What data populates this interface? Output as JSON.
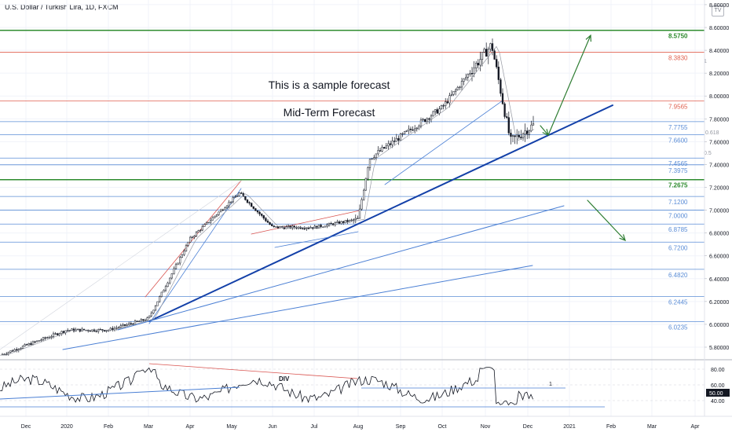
{
  "header": {
    "symbol_title": "U.S. Dollar / Turkish Lira, 1D, FXCM",
    "logo_text": "TV"
  },
  "annotations": {
    "forecast_line1": "This is a sample forecast",
    "forecast_line2": "Mid-Term Forecast",
    "div_label": "DIV",
    "fib_0618": "0.618",
    "fib_05": "0.5",
    "fib_1": "1",
    "rsi_1": "1"
  },
  "colors": {
    "candle": "#131722",
    "green_level": "#2e8b2e",
    "red_level": "#e0614f",
    "blue_level": "#5b8dd6",
    "trendline_dark": "#1340a8",
    "trendline_light": "#4a7fd4",
    "arrow": "#2e7d32",
    "resistance_red": "#d9534f"
  },
  "chart_data": {
    "type": "candlestick",
    "title": "U.S. Dollar / Turkish Lira, 1D, FXCM",
    "ylim": [
      5.7,
      8.8
    ],
    "yticks": [
      5.8,
      6.0,
      6.2,
      6.4,
      6.6,
      6.8,
      7.0,
      7.2,
      7.4,
      7.6,
      7.8,
      8.0,
      8.2,
      8.4,
      8.6,
      8.8
    ],
    "yticks_labels": [
      "5.80000",
      "6.00000",
      "6.20000",
      "6.40000",
      "6.60000",
      "6.80000",
      "7.00000",
      "7.20000",
      "7.40000",
      "7.60000",
      "7.80000",
      "8.00000",
      "8.20000",
      "8.40000",
      "8.60000",
      "8.80000"
    ],
    "xticks": [
      "Dec",
      "2020",
      "Feb",
      "Mar",
      "Apr",
      "May",
      "Jun",
      "Jul",
      "Aug",
      "Sep",
      "Oct",
      "Nov",
      "Dec",
      "2021",
      "Feb",
      "Mar",
      "Apr"
    ],
    "levels": [
      {
        "value": 8.575,
        "label": "8.5750",
        "color": "green"
      },
      {
        "value": 8.383,
        "label": "8.3830",
        "color": "red"
      },
      {
        "value": 7.9565,
        "label": "7.9565",
        "color": "red"
      },
      {
        "value": 7.7755,
        "label": "7.7755",
        "color": "blue"
      },
      {
        "value": 7.66,
        "label": "7.6600",
        "color": "blue"
      },
      {
        "value": 7.4565,
        "label": "7.4565",
        "color": "blue"
      },
      {
        "value": 7.3975,
        "label": "7.3975",
        "color": "blue"
      },
      {
        "value": 7.2675,
        "label": "7.2675",
        "color": "green"
      },
      {
        "value": 7.12,
        "label": "7.1200",
        "color": "blue"
      },
      {
        "value": 7.0,
        "label": "7.0000",
        "color": "blue"
      },
      {
        "value": 6.8785,
        "label": "6.8785",
        "color": "blue"
      },
      {
        "value": 6.72,
        "label": "6.7200",
        "color": "blue"
      },
      {
        "value": 6.482,
        "label": "6.4820",
        "color": "blue"
      },
      {
        "value": 6.2445,
        "label": "6.2445",
        "color": "blue"
      },
      {
        "value": 6.0235,
        "label": "6.0235",
        "color": "blue"
      }
    ],
    "price_path": [
      [
        "Dec",
        5.73
      ],
      [
        "2020",
        5.95
      ],
      [
        "Feb",
        5.95
      ],
      [
        "Mar",
        6.05
      ],
      [
        "Apr",
        6.75
      ],
      [
        "May",
        7.15
      ],
      [
        "Jun",
        6.85
      ],
      [
        "Jul",
        6.85
      ],
      [
        "Aug",
        6.92
      ],
      [
        "Sep",
        7.45
      ],
      [
        "Oct",
        7.9
      ],
      [
        "Nov",
        8.45
      ],
      [
        "Nov",
        7.6
      ],
      [
        "Dec",
        7.75
      ]
    ],
    "rsi": {
      "ylim": [
        30,
        90
      ],
      "yticks": [
        40,
        60,
        80
      ],
      "yticks_labels": [
        "40.00",
        "60.00",
        "80.00"
      ],
      "current_label": "50.00"
    }
  }
}
